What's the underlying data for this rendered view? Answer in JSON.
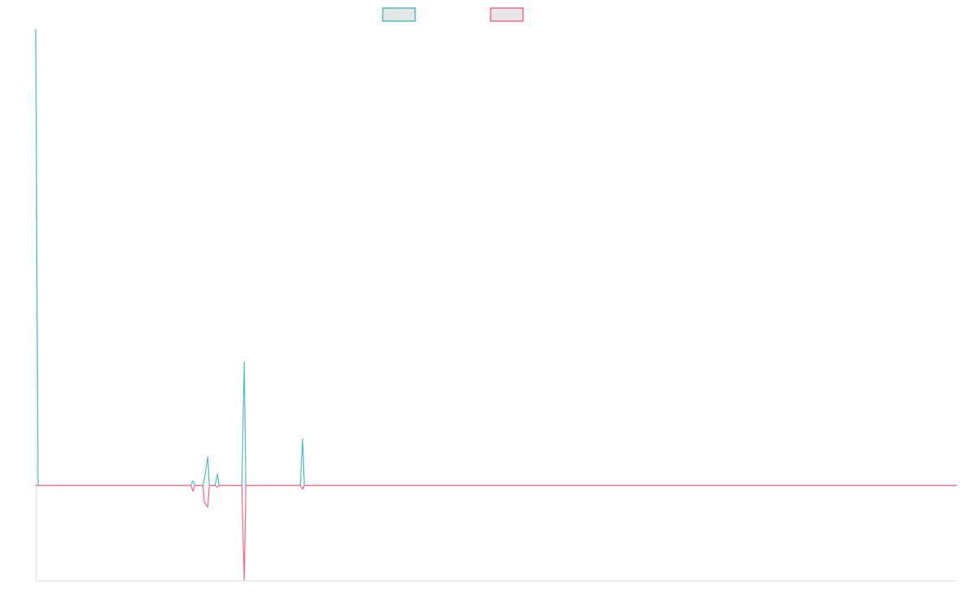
{
  "chart_data": {
    "type": "line",
    "title": "",
    "xlabel": "",
    "ylabel": "",
    "grid": false,
    "legend": "top-center",
    "ylim": [
      -1,
      4.8
    ],
    "x": [
      0,
      1,
      2,
      3,
      4,
      5,
      6,
      7,
      8,
      9,
      10,
      11,
      12,
      13,
      14,
      15,
      16,
      17,
      18,
      19,
      20,
      21,
      22,
      23,
      24,
      25,
      26,
      27,
      28,
      29,
      30,
      31,
      32,
      33,
      34,
      35,
      36,
      37,
      38,
      39,
      40,
      41,
      42,
      43,
      44,
      45,
      46,
      47,
      48,
      49,
      50,
      51,
      52,
      53,
      54,
      55,
      56,
      57,
      58,
      59,
      60,
      61,
      62,
      63,
      64,
      65,
      66,
      67,
      68,
      69,
      70,
      71,
      72,
      73,
      74,
      75,
      76,
      77,
      78,
      79,
      80,
      81,
      82,
      83,
      84,
      85,
      86,
      87,
      88,
      89,
      90,
      91,
      92,
      93,
      94,
      95,
      96,
      97,
      98,
      99,
      100,
      101,
      102,
      103,
      104,
      105,
      106,
      107,
      108,
      109,
      110,
      111,
      112,
      113,
      114,
      115,
      116,
      117,
      118,
      119,
      120,
      121,
      122,
      123,
      124,
      125,
      126,
      127,
      128,
      129,
      130,
      131,
      132,
      133,
      134,
      135,
      136,
      137,
      138,
      139,
      140,
      141,
      142,
      143,
      144,
      145,
      146,
      147,
      148,
      149,
      150,
      151,
      152,
      153,
      154,
      155,
      156,
      157,
      158,
      159,
      160,
      161,
      162,
      163,
      164,
      165,
      166,
      167,
      168,
      169,
      170,
      171,
      172,
      173,
      174,
      175,
      176,
      177,
      178,
      179,
      180,
      181,
      182,
      183,
      184,
      185,
      186,
      187,
      188,
      189,
      190,
      191,
      192,
      193,
      194,
      195,
      196,
      197,
      198,
      199,
      200,
      201,
      202,
      203,
      204,
      205,
      206,
      207,
      208,
      209,
      210,
      211,
      212,
      213,
      214,
      215,
      216,
      217,
      218,
      219,
      220,
      221,
      222,
      223,
      224,
      225,
      226,
      227,
      228,
      229,
      230,
      231,
      232,
      233,
      234,
      235,
      236,
      237,
      238,
      239,
      240,
      241,
      242,
      243,
      244,
      245,
      246,
      247,
      248,
      249,
      250,
      251,
      252,
      253,
      254,
      255,
      256,
      257,
      258,
      259,
      260,
      261,
      262,
      263,
      264,
      265,
      266,
      267,
      268,
      269,
      270,
      271,
      272,
      273,
      274,
      275,
      276,
      277,
      278,
      279,
      280,
      281,
      282,
      283,
      284,
      285,
      286,
      287,
      288,
      289,
      290,
      291,
      292,
      293,
      294,
      295,
      296,
      297,
      298,
      299,
      300,
      301,
      302,
      303,
      304,
      305,
      306,
      307,
      308,
      309,
      310,
      311,
      312,
      313,
      314,
      315,
      316,
      317,
      318,
      319,
      320,
      321,
      322,
      323,
      324,
      325,
      326,
      327,
      328,
      329,
      330,
      331,
      332,
      333,
      334,
      335,
      336,
      337,
      338,
      339,
      340,
      341,
      342,
      343,
      344,
      345,
      346,
      347,
      348,
      349,
      350,
      351,
      352,
      353,
      354,
      355,
      356,
      357,
      358,
      359,
      360,
      361,
      362,
      363,
      364,
      365,
      366,
      367,
      368,
      369,
      370,
      371,
      372,
      373,
      374,
      375,
      376,
      377,
      378,
      379,
      380,
      381,
      382,
      383,
      384,
      385,
      386,
      387,
      388,
      389,
      390,
      391,
      392,
      393,
      394,
      395,
      396,
      397,
      398,
      399,
      400,
      401,
      402,
      403,
      404,
      405,
      406,
      407,
      408,
      409,
      410,
      411,
      412,
      413,
      414,
      415,
      416,
      417,
      418,
      419,
      420,
      421,
      422,
      423,
      424,
      425,
      426,
      427,
      428,
      429,
      430,
      431,
      432,
      433,
      434,
      435,
      436,
      437,
      438,
      439,
      440,
      441,
      442,
      443,
      444,
      445,
      446,
      447,
      448,
      449,
      450,
      451,
      452,
      453,
      454,
      455,
      456,
      457,
      458,
      459,
      460,
      461,
      462,
      463,
      464,
      465,
      466,
      467,
      468,
      469,
      470,
      471,
      472,
      473,
      474,
      475,
      476,
      477,
      478,
      479,
      480,
      481,
      482,
      483,
      484,
      485,
      486,
      487,
      488,
      489,
      490,
      491,
      492,
      493,
      494,
      495,
      496,
      497,
      498,
      499,
      500,
      501,
      502,
      503,
      504,
      505,
      506,
      507,
      508,
      509,
      510,
      511,
      512,
      513,
      514,
      515,
      516,
      517,
      518,
      519,
      520,
      521,
      522,
      523,
      524,
      525,
      526,
      527,
      528,
      529,
      530,
      531,
      532,
      533,
      534,
      535,
      536,
      537,
      538,
      539,
      540,
      541,
      542,
      543,
      544,
      545,
      546,
      547,
      548,
      549,
      550,
      551,
      552,
      553,
      554,
      555,
      556,
      557,
      558,
      559,
      560,
      561,
      562,
      563,
      564,
      565,
      566,
      567,
      568,
      569,
      570,
      571,
      572,
      573,
      574,
      575,
      576,
      577,
      578,
      579,
      580,
      581,
      582,
      583,
      584,
      585,
      586,
      587,
      588,
      589,
      590,
      591,
      592,
      593,
      594,
      595,
      596,
      597,
      598,
      599,
      600,
      601,
      602,
      603,
      604,
      605,
      606,
      607,
      608,
      609,
      610,
      611,
      612,
      613,
      614,
      615,
      616,
      617,
      618,
      619,
      620,
      621,
      622,
      623,
      624,
      625,
      626,
      627,
      628,
      629,
      630,
      631,
      632,
      633,
      634,
      635,
      636,
      637,
      638,
      639,
      640,
      641,
      642,
      643,
      644,
      645,
      646,
      647,
      648,
      649,
      650,
      651,
      652,
      653,
      654,
      655,
      656,
      657,
      658,
      659,
      660,
      661,
      662,
      663,
      664,
      665,
      666,
      667,
      668,
      669,
      670,
      671,
      672,
      673,
      674,
      675,
      676,
      677,
      678,
      679,
      680,
      681,
      682,
      683,
      684,
      685,
      686,
      687,
      688,
      689,
      690,
      691,
      692,
      693,
      694,
      695,
      696,
      697,
      698,
      699,
      700,
      701,
      702,
      703,
      704,
      705,
      706,
      707,
      708,
      709,
      710,
      711,
      712,
      713,
      714,
      715,
      716,
      717,
      718,
      719,
      720,
      721,
      722,
      723,
      724,
      725,
      726,
      727,
      728,
      729,
      730,
      731,
      732,
      733,
      734,
      735,
      736,
      737,
      738,
      739,
      740,
      741,
      742,
      743,
      744,
      745,
      746,
      747,
      748,
      749,
      750,
      751,
      752,
      753,
      754,
      755,
      756,
      757,
      758,
      759,
      760,
      761,
      762,
      763,
      764,
      765,
      766,
      767,
      768,
      769,
      770,
      771,
      772,
      773,
      774,
      775,
      776,
      777,
      778,
      779,
      780,
      781,
      782,
      783,
      784,
      785,
      786,
      787,
      788,
      789,
      790,
      791,
      792,
      793,
      794,
      795,
      796,
      797,
      798,
      799,
      800,
      801,
      802,
      803,
      804,
      805,
      806,
      807,
      808,
      809,
      810,
      811,
      812,
      813,
      814,
      815,
      816,
      817,
      818,
      819,
      820,
      821,
      822,
      823,
      824,
      825,
      826,
      827,
      828,
      829,
      830,
      831,
      832,
      833,
      834,
      835,
      836,
      837,
      838,
      839,
      840,
      841,
      842,
      843,
      844,
      845,
      846,
      847,
      848,
      849,
      850,
      851,
      852,
      853,
      854,
      855,
      856,
      857,
      858,
      859,
      860,
      861,
      862,
      863,
      864,
      865,
      866,
      867,
      868,
      869,
      870,
      871,
      872,
      873,
      874,
      875,
      876,
      877,
      878,
      879,
      880,
      881,
      882,
      883,
      884,
      885,
      886,
      887,
      888,
      889,
      890,
      891,
      892,
      893,
      894,
      895,
      896,
      897,
      898,
      899,
      900,
      901,
      902,
      903,
      904,
      905,
      906,
      907,
      908,
      909,
      910,
      911,
      912,
      913,
      914,
      915,
      916,
      917,
      918,
      919,
      920,
      921,
      922,
      923,
      924,
      925,
      926,
      927,
      928,
      929,
      930,
      931,
      932,
      933,
      934,
      935,
      936,
      937,
      938,
      939,
      940,
      941,
      942,
      943,
      944,
      945,
      946,
      947,
      948,
      949,
      950,
      951,
      952,
      953,
      954,
      955,
      956,
      957,
      958,
      959,
      960,
      961,
      962,
      963,
      964,
      965,
      966,
      967,
      968,
      969,
      970,
      971,
      972,
      973,
      974,
      975,
      976,
      977,
      978,
      979,
      980,
      981,
      982,
      983,
      984,
      985,
      986,
      987,
      988,
      989,
      990,
      991,
      992,
      993,
      994,
      995,
      996,
      997,
      998,
      999,
      1000,
      1001,
      1002,
      1003,
      1004,
      1005,
      1006,
      1007,
      1008,
      1009,
      1010,
      1011,
      1012,
      1013,
      1014,
      1015,
      1016,
      1017,
      1018,
      1019,
      1020,
      1021,
      1022,
      1023,
      1024,
      1025,
      1026,
      1027,
      1028,
      1029,
      1030,
      1031,
      1032,
      1033,
      1034,
      1035,
      1036,
      1037,
      1038,
      1039,
      1040,
      1041,
      1042,
      1043,
      1044,
      1045,
      1046,
      1047,
      1048,
      1049,
      1050,
      1051,
      1052,
      1053,
      1054,
      1055,
      1056,
      1057,
      1058,
      1059,
      1060,
      1061,
      1062,
      1063,
      1064,
      1065,
      1066,
      1067,
      1068,
      1069,
      1070,
      1071,
      1072,
      1073,
      1074,
      1075,
      1076,
      1077,
      1078,
      1079,
      1080,
      1081,
      1082,
      1083,
      1084,
      1085,
      1086,
      1087,
      1088,
      1089,
      1090,
      1091,
      1092,
      1093,
      1094,
      1095,
      1096,
      1097,
      1098,
      1099,
      1100,
      1101,
      1102,
      1103,
      1104,
      1105,
      1106,
      1107,
      1108,
      1109,
      1110,
      1111,
      1112,
      1113,
      1114,
      1115,
      1116,
      1117,
      1118,
      1119,
      1120,
      1121,
      1122,
      1123,
      1124,
      1125,
      1126,
      1127,
      1128,
      1129,
      1130,
      1131,
      1132,
      1133,
      1134,
      1135
    ],
    "series": [
      {
        "color": "#4bc0c0",
        "points": [
          [
            0,
            4.8
          ],
          [
            3,
            0
          ],
          [
            191,
            0
          ],
          [
            194,
            0.05
          ],
          [
            196,
            0
          ],
          [
            206,
            0
          ],
          [
            208,
            0.07
          ],
          [
            212,
            0.3
          ],
          [
            214,
            0
          ],
          [
            221,
            0
          ],
          [
            224,
            0.12
          ],
          [
            226,
            0
          ],
          [
            254,
            0
          ],
          [
            257,
            1.3
          ],
          [
            259,
            0
          ],
          [
            326,
            0
          ],
          [
            329,
            0.49
          ],
          [
            331,
            0
          ],
          [
            1135,
            0
          ]
        ]
      },
      {
        "color": "#ff6384",
        "points": [
          [
            0,
            0
          ],
          [
            191,
            0
          ],
          [
            194,
            -0.06
          ],
          [
            196,
            0
          ],
          [
            206,
            0
          ],
          [
            208,
            -0.18
          ],
          [
            212,
            -0.23
          ],
          [
            214,
            0
          ],
          [
            221,
            0
          ],
          [
            224,
            -0.02
          ],
          [
            226,
            0
          ],
          [
            254,
            0
          ],
          [
            257,
            -1
          ],
          [
            259,
            0
          ],
          [
            326,
            0
          ],
          [
            329,
            -0.04
          ],
          [
            331,
            0
          ],
          [
            1135,
            0
          ]
        ]
      }
    ]
  }
}
